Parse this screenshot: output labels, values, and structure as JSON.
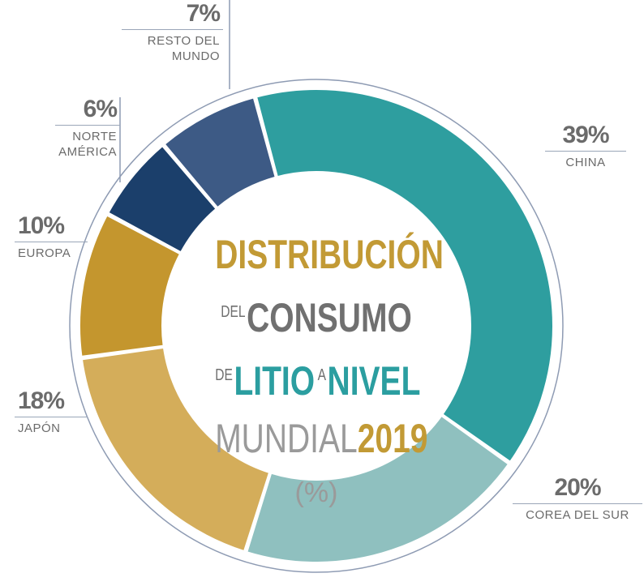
{
  "chart_data": {
    "type": "donut",
    "title": [
      "DISTRIBUCIÓN",
      "DEL",
      "CONSUMO",
      "DE",
      "LITIO",
      "A",
      "NIVEL",
      "MUNDIAL",
      "2019"
    ],
    "subtitle": "(%)",
    "categories": [
      "CHINA",
      "COREA DEL SUR",
      "JAPÓN",
      "EUROPA",
      "NORTE AMÉRICA",
      "RESTO DEL MUNDO"
    ],
    "values": [
      39,
      20,
      18,
      10,
      6,
      7
    ],
    "value_labels": [
      "39%",
      "20%",
      "18%",
      "10%",
      "6%",
      "7%"
    ],
    "colors": [
      "#2e9e9f",
      "#8fc0bf",
      "#d4ad5a",
      "#c4962e",
      "#1b3f6b",
      "#3d5a85"
    ]
  }
}
